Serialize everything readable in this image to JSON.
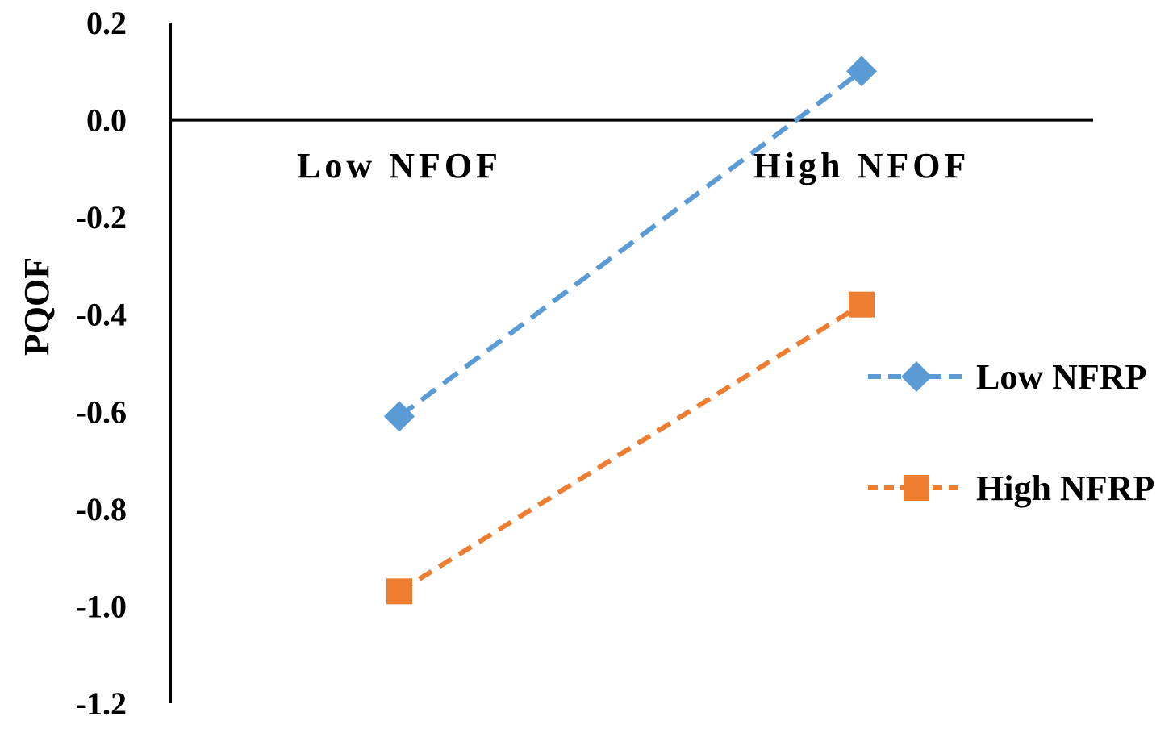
{
  "chart_data": {
    "type": "line",
    "ylabel": "PQOF",
    "xlabel": "",
    "categories": [
      "Low NFOF",
      "High NFOF"
    ],
    "ylim": [
      -1.2,
      0.2
    ],
    "yticks": [
      "0.2",
      "0.0",
      "-0.2",
      "-0.4",
      "-0.6",
      "-0.8",
      "-1.0",
      "-1.2"
    ],
    "ytick_values": [
      0.2,
      0.0,
      -0.2,
      -0.4,
      -0.6,
      -0.8,
      -1.0,
      -1.2
    ],
    "grid": false,
    "legend_position": "right",
    "series": [
      {
        "name": "Low  NFRP",
        "values": [
          -0.61,
          0.1
        ],
        "color": "#5B9BD5",
        "marker": "diamond",
        "line_style": "dashed"
      },
      {
        "name": "High NFRP",
        "values": [
          -0.97,
          -0.38
        ],
        "color": "#ED7D31",
        "marker": "square",
        "line_style": "dashed"
      }
    ]
  }
}
